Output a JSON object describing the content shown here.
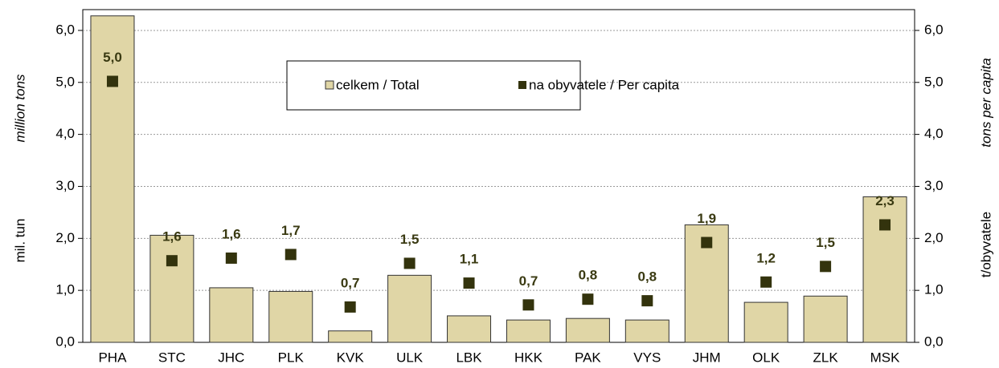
{
  "chart_data": {
    "type": "bar",
    "categories": [
      "PHA",
      "STC",
      "JHC",
      "PLK",
      "KVK",
      "ULK",
      "LBK",
      "HKK",
      "PAK",
      "VYS",
      "JHM",
      "OLK",
      "ZLK",
      "MSK"
    ],
    "series": [
      {
        "name": "celkem / Total",
        "type": "bar",
        "color": "#e0d6a6",
        "values": [
          6.28,
          2.06,
          1.05,
          0.98,
          0.22,
          1.29,
          0.51,
          0.43,
          0.46,
          0.43,
          2.26,
          0.77,
          0.89,
          2.8
        ]
      },
      {
        "name": "na obyvatele / Per capita",
        "type": "scatter",
        "axis": "y2",
        "color": "#33330d",
        "values": [
          5.02,
          1.57,
          1.62,
          1.69,
          0.68,
          1.52,
          1.14,
          0.72,
          0.83,
          0.8,
          1.92,
          1.16,
          1.46,
          2.26
        ],
        "value_labels": [
          "5,0",
          "1,6",
          "1,6",
          "1,7",
          "0,7",
          "1,5",
          "1,1",
          "0,7",
          "0,8",
          "0,8",
          "1,9",
          "1,2",
          "1,5",
          "2,3"
        ]
      }
    ],
    "ylabel": [
      "mil. tun",
      "million tons"
    ],
    "y2label": [
      "t/obyvatele",
      "tons per capita"
    ],
    "ylim": [
      0,
      6.4
    ],
    "yticks": [
      {
        "value": 0,
        "label": "0,0"
      },
      {
        "value": 1,
        "label": "1,0"
      },
      {
        "value": 2,
        "label": "2,0"
      },
      {
        "value": 3,
        "label": "3,0"
      },
      {
        "value": 4,
        "label": "4,0"
      },
      {
        "value": 5,
        "label": "5,0"
      },
      {
        "value": 6,
        "label": "6,0"
      }
    ],
    "y2lim": [
      0,
      6.4
    ],
    "y2ticks": [
      {
        "value": 0,
        "label": "0,0"
      },
      {
        "value": 1,
        "label": "1,0"
      },
      {
        "value": 2,
        "label": "2,0"
      },
      {
        "value": 3,
        "label": "3,0"
      },
      {
        "value": 4,
        "label": "4,0"
      },
      {
        "value": 5,
        "label": "5,0"
      },
      {
        "value": 6,
        "label": "6,0"
      }
    ],
    "grid": true,
    "legend": "top"
  }
}
